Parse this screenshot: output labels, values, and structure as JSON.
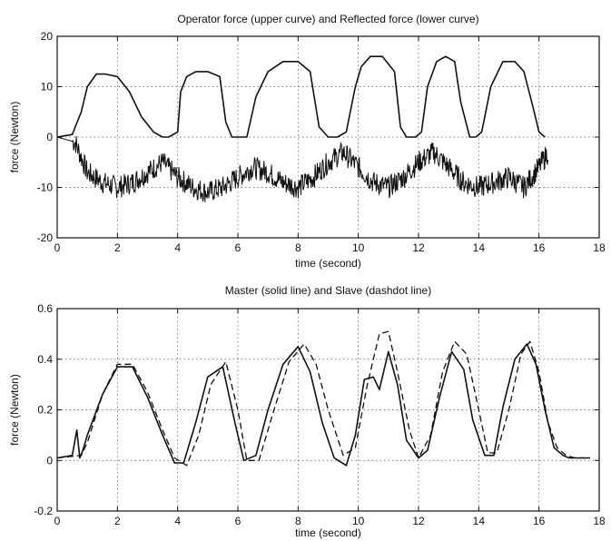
{
  "chart_data": [
    {
      "type": "line",
      "title": "Operator force (upper curve) and Reflected force (lower curve)",
      "xlabel": "time (second)",
      "ylabel": "force (Newton)",
      "xlim": [
        0,
        18
      ],
      "ylim": [
        -20,
        20
      ],
      "xticks": [
        0,
        2,
        4,
        6,
        8,
        10,
        12,
        14,
        16,
        18
      ],
      "yticks": [
        -20,
        -10,
        0,
        10,
        20
      ],
      "grid": true,
      "series": [
        {
          "style": "solid",
          "x": [
            0,
            0.5,
            0.8,
            1.0,
            1.3,
            1.6,
            2.0,
            2.4,
            2.8,
            3.2,
            3.5,
            3.7,
            4.0,
            4.1,
            4.3,
            4.6,
            5.0,
            5.4,
            5.6,
            5.8,
            6.0,
            6.3,
            6.6,
            7.0,
            7.5,
            8.0,
            8.4,
            8.7,
            9.0,
            9.3,
            9.6,
            9.9,
            10.1,
            10.4,
            10.8,
            11.2,
            11.4,
            11.6,
            11.9,
            12.1,
            12.3,
            12.6,
            12.9,
            13.2,
            13.4,
            13.7,
            13.9,
            14.1,
            14.4,
            14.8,
            15.2,
            15.5,
            15.8,
            16.0,
            16.2
          ],
          "y": [
            0,
            0.5,
            5,
            10,
            12.5,
            12.5,
            12,
            9,
            4,
            1,
            0,
            0,
            1,
            9,
            12,
            13,
            13,
            12,
            3,
            0,
            0,
            0,
            8,
            13,
            15,
            15,
            13,
            2,
            0,
            0,
            1,
            10,
            14,
            16,
            16,
            13,
            2,
            0,
            0,
            1,
            10,
            15,
            16,
            15,
            7,
            0,
            0,
            1,
            10,
            15,
            15,
            13,
            6,
            1,
            0
          ]
        },
        {
          "style": "solid-noisy",
          "x": [
            0,
            0.6,
            1.0,
            1.5,
            2.0,
            2.5,
            3.0,
            3.5,
            4.0,
            4.5,
            5.0,
            5.5,
            6.0,
            6.5,
            7.0,
            7.5,
            8.0,
            8.5,
            9.0,
            9.5,
            10.0,
            10.5,
            11.0,
            11.5,
            12.0,
            12.5,
            13.0,
            13.5,
            14.0,
            14.5,
            15.0,
            15.5,
            16.0,
            16.3
          ],
          "y": [
            0,
            -1,
            -7,
            -9,
            -10,
            -9,
            -7,
            -5,
            -8,
            -10,
            -11,
            -10,
            -8,
            -6,
            -7,
            -9,
            -10,
            -8,
            -5,
            -3,
            -6,
            -9,
            -10,
            -8,
            -5,
            -3,
            -6,
            -9,
            -10,
            -9,
            -8,
            -10,
            -6,
            -3
          ]
        }
      ]
    },
    {
      "type": "line",
      "title": "Master (solid line) and Slave (dashdot line)",
      "xlabel": "time (second)",
      "ylabel": "force (Newton)",
      "xlim": [
        0,
        18
      ],
      "ylim": [
        -0.2,
        0.6
      ],
      "xticks": [
        0,
        2,
        4,
        6,
        8,
        10,
        12,
        14,
        16,
        18
      ],
      "yticks": [
        -0.2,
        0,
        0.2,
        0.4,
        0.6
      ],
      "grid": true,
      "series": [
        {
          "style": "solid",
          "x": [
            0,
            0.5,
            0.65,
            0.75,
            0.85,
            1.0,
            1.5,
            2.0,
            2.5,
            3.0,
            3.5,
            3.9,
            4.2,
            4.6,
            5.0,
            5.5,
            5.9,
            6.2,
            6.6,
            7.0,
            7.5,
            8.0,
            8.4,
            8.8,
            9.2,
            9.6,
            9.9,
            10.2,
            10.5,
            10.7,
            11.0,
            11.3,
            11.6,
            12.0,
            12.3,
            12.7,
            13.1,
            13.5,
            13.8,
            14.2,
            14.5,
            14.8,
            15.2,
            15.6,
            15.9,
            16.2,
            16.5,
            16.8,
            17.0,
            17.7
          ],
          "y": [
            0.01,
            0.02,
            0.12,
            0.01,
            0.04,
            0.1,
            0.26,
            0.37,
            0.37,
            0.25,
            0.1,
            -0.01,
            -0.01,
            0.15,
            0.33,
            0.37,
            0.15,
            0.0,
            0.02,
            0.2,
            0.38,
            0.45,
            0.35,
            0.15,
            0.01,
            -0.02,
            0.1,
            0.32,
            0.33,
            0.28,
            0.43,
            0.3,
            0.08,
            0.01,
            0.04,
            0.25,
            0.43,
            0.36,
            0.16,
            0.02,
            0.02,
            0.21,
            0.4,
            0.46,
            0.38,
            0.2,
            0.05,
            0.02,
            0.01,
            0.01
          ]
        },
        {
          "style": "dashed",
          "x": [
            0,
            0.8,
            1.0,
            1.5,
            2.0,
            2.5,
            3.0,
            3.5,
            3.9,
            4.3,
            4.7,
            5.1,
            5.6,
            6.0,
            6.3,
            6.7,
            7.2,
            7.7,
            8.2,
            8.6,
            9.0,
            9.5,
            9.9,
            10.3,
            10.7,
            11.0,
            11.3,
            11.7,
            12.0,
            12.4,
            12.8,
            13.2,
            13.6,
            14.0,
            14.3,
            14.6,
            15.0,
            15.4,
            15.7,
            16.0,
            16.3,
            16.6,
            16.9,
            17.2,
            17.7
          ],
          "y": [
            0.01,
            0.02,
            0.07,
            0.26,
            0.38,
            0.38,
            0.27,
            0.12,
            0.01,
            -0.02,
            0.1,
            0.3,
            0.39,
            0.2,
            0.0,
            0.0,
            0.2,
            0.39,
            0.46,
            0.38,
            0.2,
            0.02,
            0.05,
            0.3,
            0.5,
            0.51,
            0.35,
            0.12,
            0.01,
            0.1,
            0.35,
            0.47,
            0.42,
            0.2,
            0.03,
            0.03,
            0.2,
            0.42,
            0.47,
            0.35,
            0.15,
            0.05,
            0.02,
            0.01,
            0.01
          ]
        }
      ]
    }
  ]
}
